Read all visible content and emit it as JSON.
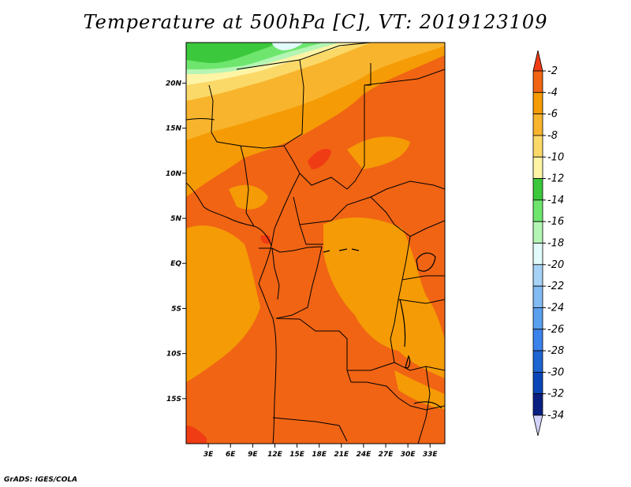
{
  "title": "Temperature at 500hPa [C], VT: 2019123109",
  "credit": "GrADS: IGES/COLA",
  "map": {
    "lon_range": [
      0,
      35
    ],
    "lat_range": [
      -20,
      24.5
    ],
    "lat_ticks": [
      {
        "value": 20,
        "label": "20N"
      },
      {
        "value": 15,
        "label": "15N"
      },
      {
        "value": 10,
        "label": "10N"
      },
      {
        "value": 5,
        "label": "5N"
      },
      {
        "value": 0,
        "label": "EQ"
      },
      {
        "value": -5,
        "label": "5S"
      },
      {
        "value": -10,
        "label": "10S"
      },
      {
        "value": -15,
        "label": "15S"
      }
    ],
    "lon_ticks": [
      {
        "value": 3,
        "label": "3E"
      },
      {
        "value": 6,
        "label": "6E"
      },
      {
        "value": 9,
        "label": "9E"
      },
      {
        "value": 12,
        "label": "12E"
      },
      {
        "value": 15,
        "label": "15E"
      },
      {
        "value": 18,
        "label": "18E"
      },
      {
        "value": 21,
        "label": "21E"
      },
      {
        "value": 24,
        "label": "24E"
      },
      {
        "value": 27,
        "label": "27E"
      },
      {
        "value": 30,
        "label": "30E"
      },
      {
        "value": 33,
        "label": "33E"
      }
    ]
  },
  "colorbar": {
    "levels": [
      "-2",
      "-4",
      "-6",
      "-8",
      "-10",
      "-12",
      "-14",
      "-16",
      "-18",
      "-20",
      "-22",
      "-24",
      "-26",
      "-28",
      "-30",
      "-32",
      "-34"
    ],
    "colors": [
      "#f03c14",
      "#f06414",
      "#f59b05",
      "#f8b42c",
      "#fbd968",
      "#fef4a6",
      "#3cc83c",
      "#6ee66e",
      "#b4f5b4",
      "#e1fafa",
      "#a5d2f5",
      "#82bbf2",
      "#5aa0ee",
      "#3c82eb",
      "#1e64d2",
      "#0a46b9",
      "#0a1f82",
      "#d2d2fa"
    ]
  },
  "colors": {
    "warm_dominant": "#f06414",
    "mid_orange": "#f59b05",
    "light_orange": "#f8b42c",
    "yellow": "#fbd968",
    "green": "#3cc83c"
  }
}
